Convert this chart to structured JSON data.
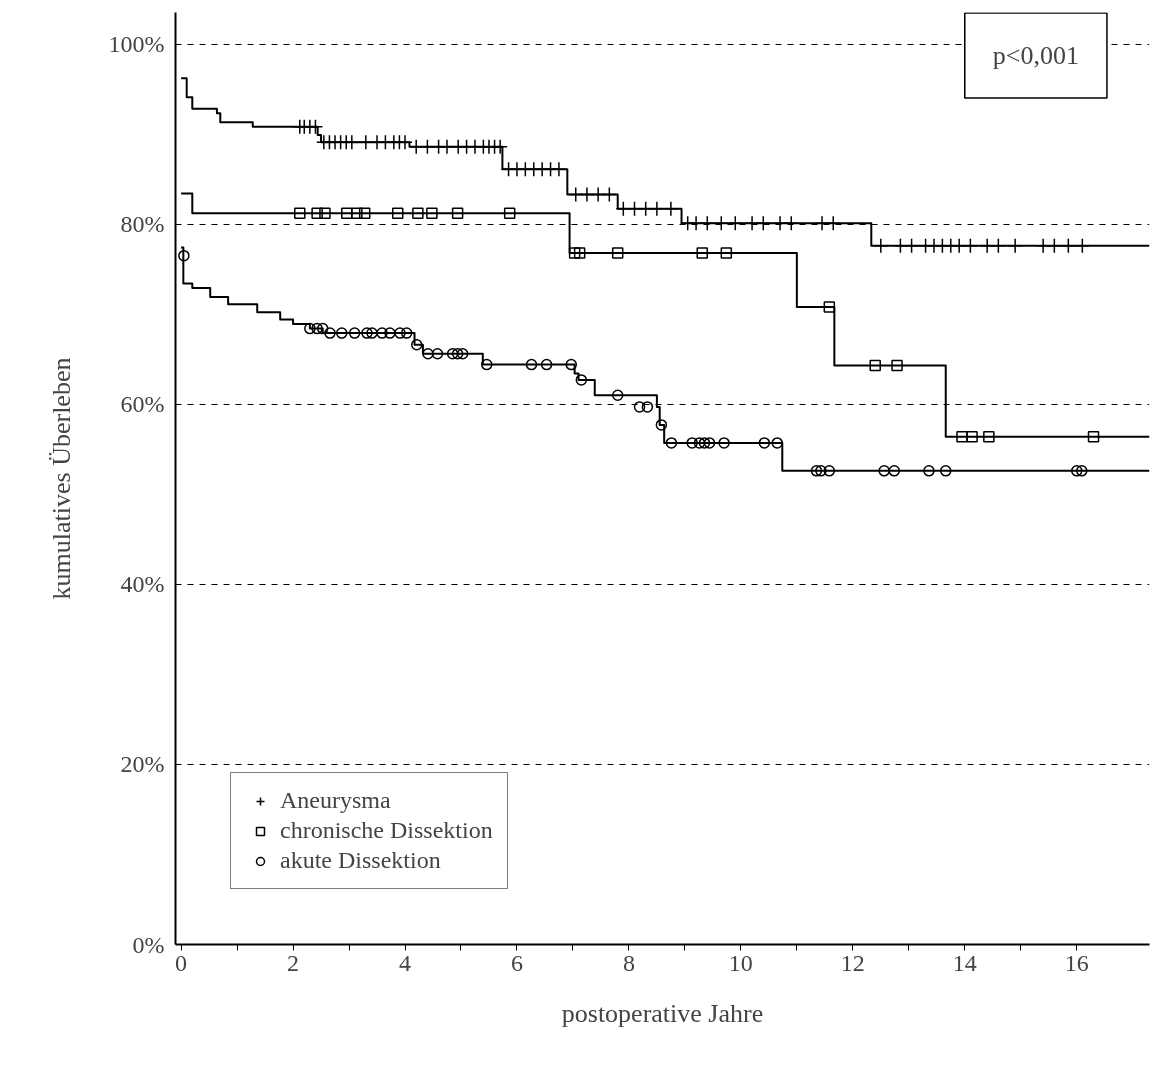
{
  "chart_data": {
    "type": "step",
    "xlabel": "postoperative Jahre",
    "ylabel": "kumulatives Überleben",
    "xlim": [
      -0.1,
      17.3
    ],
    "ylim": [
      0,
      103.5
    ],
    "xticks": [
      0,
      {
        "value": 1,
        "label": null
      },
      2,
      {
        "value": 3,
        "label": null
      },
      4,
      {
        "value": 5,
        "label": null
      },
      6,
      {
        "value": 7,
        "label": null
      },
      8,
      {
        "value": 9,
        "label": null
      },
      10,
      {
        "value": 11,
        "label": null
      },
      12,
      {
        "value": 13,
        "label": null
      },
      14,
      {
        "value": 15,
        "label": null
      },
      16
    ],
    "yticks": [
      {
        "value": 0,
        "label": "0%"
      },
      {
        "value": 20,
        "label": "20%"
      },
      {
        "value": 40,
        "label": "40%"
      },
      {
        "value": 60,
        "label": "60%"
      },
      {
        "value": 80,
        "label": "80%"
      },
      {
        "value": 100,
        "label": "100%"
      }
    ],
    "grid": "y",
    "legend": "bottom left",
    "annotations": [
      "p<0,001"
    ],
    "series": [
      {
        "color": "#000000",
        "marker": "none",
        "x": [
          0,
          0.1,
          0.2,
          0.64,
          0.7,
          1.28,
          2.44,
          2.5,
          4.08,
          5.74,
          6.9,
          7.8,
          8.94,
          12.33,
          17.3
        ],
        "values": [
          96.2,
          94.1,
          92.8,
          92.3,
          91.3,
          90.8,
          89.9,
          89.1,
          88.6,
          86.1,
          83.3,
          81.7,
          80.1,
          77.6,
          77.6
        ]
      },
      {
        "color": "#000000",
        "marker": "none",
        "x": [
          0,
          0.2,
          6.94,
          11.0,
          11.67,
          13.66,
          17.3
        ],
        "values": [
          83.4,
          81.2,
          76.8,
          70.8,
          64.3,
          56.4,
          56.4
        ]
      },
      {
        "color": "#000000",
        "marker": "none",
        "x": [
          0,
          0.04,
          0.2,
          0.52,
          0.84,
          1.36,
          1.77,
          2.0,
          2.3,
          2.53,
          4.17,
          4.32,
          5.39,
          7.03,
          7.1,
          7.39,
          8.5,
          8.55,
          8.63,
          10.74,
          17.3
        ],
        "values": [
          77.4,
          73.4,
          72.9,
          71.9,
          71.1,
          70.2,
          69.4,
          68.9,
          68.4,
          67.9,
          66.6,
          65.6,
          64.4,
          63.4,
          62.7,
          61.0,
          59.7,
          57.7,
          55.7,
          52.6,
          52.6
        ]
      },
      {
        "type": "scatter",
        "name": "Aneurysma",
        "color": "#000000",
        "marker": "cross",
        "x": [
          2.12,
          2.2,
          2.3,
          2.4,
          2.55,
          2.65,
          2.75,
          2.85,
          2.95,
          3.05,
          3.3,
          3.5,
          3.65,
          3.8,
          3.9,
          4.0,
          4.2,
          4.4,
          4.6,
          4.75,
          4.95,
          5.1,
          5.25,
          5.4,
          5.5,
          5.6,
          5.7,
          5.85,
          6.0,
          6.15,
          6.3,
          6.45,
          6.6,
          6.75,
          7.05,
          7.25,
          7.45,
          7.65,
          7.9,
          8.1,
          8.3,
          8.5,
          8.75,
          9.05,
          9.2,
          9.4,
          9.65,
          9.9,
          10.2,
          10.4,
          10.7,
          10.9,
          11.45,
          11.65,
          12.5,
          12.85,
          13.05,
          13.3,
          13.45,
          13.6,
          13.75,
          13.9,
          14.1,
          14.4,
          14.6,
          14.9,
          15.4,
          15.6,
          15.85,
          16.1
        ],
        "values": [
          90.8,
          90.8,
          90.8,
          90.8,
          89.1,
          89.1,
          89.1,
          89.1,
          89.1,
          89.1,
          89.1,
          89.1,
          89.1,
          89.1,
          89.1,
          89.1,
          88.6,
          88.6,
          88.6,
          88.6,
          88.6,
          88.6,
          88.6,
          88.6,
          88.6,
          88.6,
          88.6,
          86.1,
          86.1,
          86.1,
          86.1,
          86.1,
          86.1,
          86.1,
          83.3,
          83.3,
          83.3,
          83.3,
          81.7,
          81.7,
          81.7,
          81.7,
          81.7,
          80.1,
          80.1,
          80.1,
          80.1,
          80.1,
          80.1,
          80.1,
          80.1,
          80.1,
          80.1,
          80.1,
          77.6,
          77.6,
          77.6,
          77.6,
          77.6,
          77.6,
          77.6,
          77.6,
          77.6,
          77.6,
          77.6,
          77.6,
          77.6,
          77.6,
          77.6,
          77.6
        ]
      },
      {
        "type": "scatter",
        "name": "chronische Dissektion",
        "color": "#000000",
        "marker": "square",
        "x": [
          2.12,
          2.43,
          2.57,
          2.96,
          3.14,
          3.28,
          3.87,
          4.23,
          4.48,
          4.94,
          5.87,
          7.03,
          7.12,
          7.8,
          9.31,
          9.74,
          11.58,
          12.4,
          12.79,
          13.95,
          14.13,
          14.43,
          16.3
        ],
        "values": [
          81.2,
          81.2,
          81.2,
          81.2,
          81.2,
          81.2,
          81.2,
          81.2,
          81.2,
          81.2,
          81.2,
          76.8,
          76.8,
          76.8,
          76.8,
          76.8,
          70.8,
          64.3,
          64.3,
          56.4,
          56.4,
          56.4,
          56.4
        ]
      },
      {
        "type": "scatter",
        "name": "akute Dissektion",
        "color": "#000000",
        "marker": "circle",
        "x": [
          0.05,
          2.3,
          2.43,
          2.53,
          2.66,
          2.87,
          3.1,
          3.32,
          3.41,
          3.59,
          3.73,
          3.91,
          4.03,
          4.21,
          4.41,
          4.58,
          4.85,
          4.94,
          5.03,
          5.46,
          6.26,
          6.53,
          6.97,
          7.15,
          7.8,
          8.19,
          8.33,
          8.58,
          8.76,
          9.13,
          9.26,
          9.35,
          9.44,
          9.7,
          10.42,
          10.65,
          11.35,
          11.43,
          11.58,
          12.56,
          12.74,
          13.36,
          13.66,
          16.0,
          16.09
        ],
        "values": [
          76.5,
          68.4,
          68.4,
          68.4,
          67.9,
          67.9,
          67.9,
          67.9,
          67.9,
          67.9,
          67.9,
          67.9,
          67.9,
          66.6,
          65.6,
          65.6,
          65.6,
          65.6,
          65.6,
          64.4,
          64.4,
          64.4,
          64.4,
          62.7,
          61.0,
          59.7,
          59.7,
          57.7,
          55.7,
          55.7,
          55.7,
          55.7,
          55.7,
          55.7,
          55.7,
          55.7,
          52.6,
          52.6,
          52.6,
          52.6,
          52.6,
          52.6,
          52.6,
          52.6,
          52.6
        ]
      }
    ]
  }
}
